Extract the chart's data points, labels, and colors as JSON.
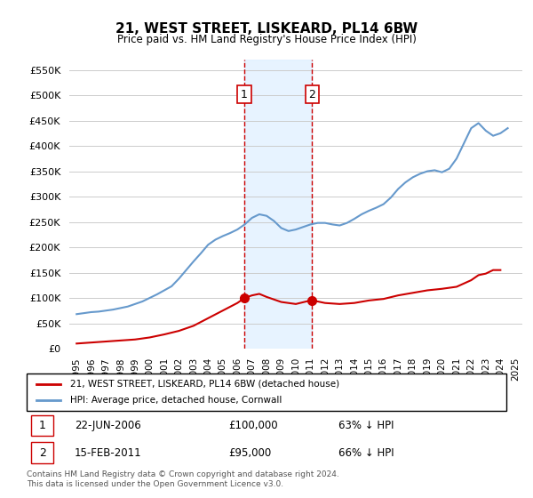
{
  "title": "21, WEST STREET, LISKEARD, PL14 6BW",
  "subtitle": "Price paid vs. HM Land Registry's House Price Index (HPI)",
  "legend_label_red": "21, WEST STREET, LISKEARD, PL14 6BW (detached house)",
  "legend_label_blue": "HPI: Average price, detached house, Cornwall",
  "footnote": "Contains HM Land Registry data © Crown copyright and database right 2024.\nThis data is licensed under the Open Government Licence v3.0.",
  "transactions": [
    {
      "label": "1",
      "date": "22-JUN-2006",
      "price": 100000,
      "pct": "63% ↓ HPI",
      "x": 2006.47
    },
    {
      "label": "2",
      "date": "15-FEB-2011",
      "price": 95000,
      "pct": "66% ↓ HPI",
      "x": 2011.12
    }
  ],
  "color_red": "#cc0000",
  "color_blue": "#6699cc",
  "color_shade": "#ddeeff",
  "ylim": [
    0,
    570000
  ],
  "yticks": [
    0,
    50000,
    100000,
    150000,
    200000,
    250000,
    300000,
    350000,
    400000,
    450000,
    500000,
    550000
  ],
  "xlim": [
    1994.5,
    2025.5
  ],
  "xticks": [
    1995,
    1996,
    1997,
    1998,
    1999,
    2000,
    2001,
    2002,
    2003,
    2004,
    2005,
    2006,
    2007,
    2008,
    2009,
    2010,
    2011,
    2012,
    2013,
    2014,
    2015,
    2016,
    2017,
    2018,
    2019,
    2020,
    2021,
    2022,
    2023,
    2024,
    2025
  ],
  "hpi_x": [
    1995,
    1995.5,
    1996,
    1996.5,
    1997,
    1997.5,
    1998,
    1998.5,
    1999,
    1999.5,
    2000,
    2000.5,
    2001,
    2001.5,
    2002,
    2002.5,
    2003,
    2003.5,
    2004,
    2004.5,
    2005,
    2005.5,
    2006,
    2006.5,
    2007,
    2007.5,
    2008,
    2008.5,
    2009,
    2009.5,
    2010,
    2010.5,
    2011,
    2011.5,
    2012,
    2012.5,
    2013,
    2013.5,
    2014,
    2014.5,
    2015,
    2015.5,
    2016,
    2016.5,
    2017,
    2017.5,
    2018,
    2018.5,
    2019,
    2019.5,
    2020,
    2020.5,
    2021,
    2021.5,
    2022,
    2022.5,
    2023,
    2023.5,
    2024,
    2024.5
  ],
  "hpi_y": [
    68000,
    70000,
    72000,
    73000,
    75000,
    77000,
    80000,
    83000,
    88000,
    93000,
    100000,
    107000,
    115000,
    123000,
    138000,
    155000,
    172000,
    188000,
    205000,
    215000,
    222000,
    228000,
    235000,
    245000,
    258000,
    265000,
    262000,
    252000,
    238000,
    232000,
    235000,
    240000,
    245000,
    248000,
    248000,
    245000,
    243000,
    248000,
    256000,
    265000,
    272000,
    278000,
    285000,
    298000,
    315000,
    328000,
    338000,
    345000,
    350000,
    352000,
    348000,
    355000,
    375000,
    405000,
    435000,
    445000,
    430000,
    420000,
    425000,
    435000
  ],
  "price_paid_x": [
    1995,
    1996,
    1997,
    1997.5,
    1998,
    1999,
    2000,
    2001,
    2002,
    2003,
    2004,
    2005,
    2006,
    2006.5,
    2007,
    2007.5,
    2008,
    2009,
    2010,
    2011,
    2011.5,
    2012,
    2013,
    2014,
    2015,
    2016,
    2017,
    2018,
    2019,
    2020,
    2021,
    2022,
    2022.5,
    2023,
    2023.5,
    2024
  ],
  "price_paid_y": [
    10000,
    12000,
    14000,
    15000,
    16000,
    18000,
    22000,
    28000,
    35000,
    45000,
    60000,
    75000,
    90000,
    100000,
    105000,
    108000,
    102000,
    92000,
    88000,
    95000,
    93000,
    90000,
    88000,
    90000,
    95000,
    98000,
    105000,
    110000,
    115000,
    118000,
    122000,
    135000,
    145000,
    148000,
    155000,
    155000
  ]
}
